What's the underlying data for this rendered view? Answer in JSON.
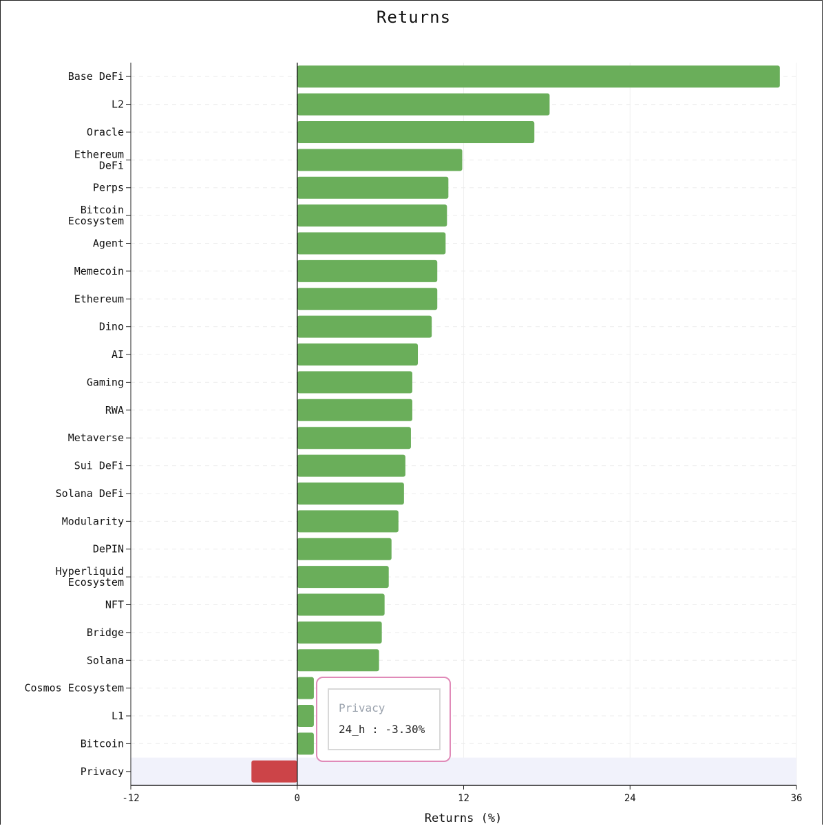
{
  "chart_data": {
    "type": "bar",
    "orientation": "horizontal",
    "title": "Returns",
    "xlabel": "Returns (%)",
    "ylabel": "",
    "xlim": [
      -12,
      36
    ],
    "xticks": [
      "-12",
      "0",
      "12",
      "24",
      "36"
    ],
    "categories": [
      "Base DeFi",
      "L2",
      "Oracle",
      "Ethereum DeFi",
      "Perps",
      "Bitcoin Ecosystem",
      "Agent",
      "Memecoin",
      "Ethereum",
      "Dino",
      "AI",
      "Gaming",
      "RWA",
      "Metaverse",
      "Sui DeFi",
      "Solana DeFi",
      "Modularity",
      "DePIN",
      "Hyperliquid Ecosystem",
      "NFT",
      "Bridge",
      "Solana",
      "Cosmos Ecosystem",
      "L1",
      "Bitcoin",
      "Privacy"
    ],
    "series": [
      {
        "values": [
          34.8,
          18.2,
          17.1,
          11.9,
          10.9,
          10.8,
          10.7,
          10.1,
          10.1,
          9.7,
          8.7,
          8.3,
          8.3,
          8.2,
          7.8,
          7.7,
          7.3,
          6.8,
          6.6,
          6.3,
          6.1,
          5.9,
          1.2,
          1.2,
          1.2,
          -3.3
        ],
        "colors": [
          "#6aae5a",
          "#6aae5a",
          "#6aae5a",
          "#6aae5a",
          "#6aae5a",
          "#6aae5a",
          "#6aae5a",
          "#6aae5a",
          "#6aae5a",
          "#6aae5a",
          "#6aae5a",
          "#6aae5a",
          "#6aae5a",
          "#6aae5a",
          "#6aae5a",
          "#6aae5a",
          "#6aae5a",
          "#6aae5a",
          "#6aae5a",
          "#6aae5a",
          "#6aae5a",
          "#6aae5a",
          "#6aae5a",
          "#6aae5a",
          "#6aae5a",
          "#cc4448"
        ]
      }
    ],
    "positive_color": "#6aae5a",
    "negative_color": "#cc4448",
    "highlighted_category": "Privacy",
    "highlight_color": "#f1f2fb",
    "grid": true
  },
  "tooltip": {
    "title": "Privacy",
    "value_text": "24_h : -3.30%",
    "border_color": "#e08ab8"
  }
}
